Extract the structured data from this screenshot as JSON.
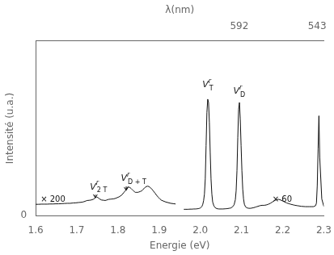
{
  "chart_data": {
    "type": "line",
    "xlabel": "Energie (eV)",
    "ylabel": "Intensité (u.a.)",
    "x2label": "λ(nm)",
    "color": "#111111",
    "grid": false,
    "xlim": [
      1.6,
      2.3
    ],
    "xticks": [
      1.6,
      1.7,
      1.8,
      1.9,
      {
        "value": 2.0,
        "label": "2.0"
      },
      2.1,
      2.2,
      2.3
    ],
    "x2lim": [
      1.6,
      2.3
    ],
    "x2ticks": [
      {
        "value": 2.0946,
        "label": "592"
      },
      {
        "value": 2.2836,
        "label": "543"
      }
    ],
    "ylim": [
      0,
      1.05
    ],
    "yticks": [
      0
    ],
    "series": [
      {
        "x": [
          1.6,
          1.607,
          1.614,
          1.621,
          1.628,
          1.635,
          1.642,
          1.649,
          1.656,
          1.663,
          1.67,
          1.677,
          1.684,
          1.691,
          1.698,
          1.705,
          1.71,
          1.715,
          1.72,
          1.725,
          1.73,
          1.735,
          1.74,
          1.745,
          1.748,
          1.751,
          1.754,
          1.757,
          1.76,
          1.763,
          1.766,
          1.769,
          1.772,
          1.775,
          1.778,
          1.782,
          1.786,
          1.79,
          1.794,
          1.798,
          1.802,
          1.806,
          1.81,
          1.814,
          1.818,
          1.82,
          1.822,
          1.824,
          1.826,
          1.828,
          1.83,
          1.832,
          1.834,
          1.836,
          1.838,
          1.84,
          1.842,
          1.845,
          1.848,
          1.851,
          1.854,
          1.857,
          1.86,
          1.863,
          1.866,
          1.869,
          1.872,
          1.875,
          1.878,
          1.882,
          1.886,
          1.89,
          1.894,
          1.898,
          1.902,
          1.906,
          1.91,
          1.916,
          1.922,
          1.928,
          1.934,
          1.94
        ],
        "values": [
          0.068,
          0.068,
          0.069,
          0.069,
          0.069,
          0.07,
          0.07,
          0.071,
          0.071,
          0.072,
          0.073,
          0.074,
          0.074,
          0.076,
          0.077,
          0.079,
          0.08,
          0.082,
          0.086,
          0.091,
          0.092,
          0.094,
          0.098,
          0.107,
          0.112,
          0.109,
          0.103,
          0.098,
          0.094,
          0.093,
          0.092,
          0.091,
          0.093,
          0.096,
          0.098,
          0.099,
          0.1,
          0.101,
          0.104,
          0.108,
          0.112,
          0.118,
          0.126,
          0.138,
          0.15,
          0.16,
          0.168,
          0.172,
          0.172,
          0.17,
          0.167,
          0.163,
          0.158,
          0.153,
          0.148,
          0.144,
          0.14,
          0.14,
          0.14,
          0.142,
          0.145,
          0.148,
          0.155,
          0.162,
          0.17,
          0.175,
          0.177,
          0.175,
          0.17,
          0.16,
          0.148,
          0.135,
          0.122,
          0.11,
          0.1,
          0.092,
          0.088,
          0.082,
          0.078,
          0.074,
          0.072,
          0.07
        ]
      },
      {
        "x": [
          1.96,
          1.965,
          1.97,
          1.975,
          1.98,
          1.984,
          1.988,
          1.992,
          1.995,
          1.998,
          2.0,
          2.002,
          2.004,
          2.006,
          2.008,
          2.01,
          2.012,
          2.014,
          2.016,
          2.018,
          2.02,
          2.022,
          2.024,
          2.026,
          2.028,
          2.03,
          2.033,
          2.036,
          2.04,
          2.045,
          2.05,
          2.055,
          2.06,
          2.065,
          2.07,
          2.074,
          2.078,
          2.082,
          2.085,
          2.087,
          2.089,
          2.091,
          2.093,
          2.095,
          2.097,
          2.099,
          2.101,
          2.103,
          2.105,
          2.107,
          2.11,
          2.114,
          2.118,
          2.122,
          2.126,
          2.13,
          2.135,
          2.14,
          2.145,
          2.15,
          2.155,
          2.16,
          2.165,
          2.17,
          2.175,
          2.18,
          2.185,
          2.19,
          2.195,
          2.2,
          2.205,
          2.21,
          2.215,
          2.22,
          2.225,
          2.23,
          2.235,
          2.24,
          2.245,
          2.25,
          2.255,
          2.26,
          2.265,
          2.27,
          2.275,
          2.28,
          2.282,
          2.284,
          2.286,
          2.288,
          2.29,
          2.295,
          2.3
        ],
        "values": [
          0.038,
          0.038,
          0.038,
          0.039,
          0.039,
          0.04,
          0.04,
          0.041,
          0.042,
          0.044,
          0.046,
          0.05,
          0.056,
          0.068,
          0.09,
          0.13,
          0.22,
          0.42,
          0.62,
          0.7,
          0.68,
          0.56,
          0.38,
          0.22,
          0.13,
          0.082,
          0.058,
          0.048,
          0.042,
          0.04,
          0.04,
          0.04,
          0.041,
          0.042,
          0.044,
          0.046,
          0.052,
          0.065,
          0.095,
          0.15,
          0.27,
          0.47,
          0.64,
          0.68,
          0.58,
          0.42,
          0.27,
          0.16,
          0.1,
          0.068,
          0.052,
          0.046,
          0.044,
          0.044,
          0.046,
          0.048,
          0.052,
          0.056,
          0.06,
          0.062,
          0.062,
          0.064,
          0.068,
          0.074,
          0.082,
          0.09,
          0.096,
          0.098,
          0.094,
          0.088,
          0.082,
          0.076,
          0.072,
          0.068,
          0.065,
          0.062,
          0.06,
          0.058,
          0.056,
          0.055,
          0.054,
          0.054,
          0.054,
          0.054,
          0.054,
          0.06,
          0.075,
          0.18,
          0.4,
          0.6,
          0.35,
          0.1,
          0.055
        ]
      }
    ],
    "annotations": [
      {
        "text": "× 200",
        "x": 1.612,
        "y": 0.095
      },
      {
        "text": "× 60",
        "x": 2.175,
        "y": 0.095
      },
      {
        "text": "V",
        "superscript": "r",
        "subscript": "2 T",
        "x": 1.745,
        "y": 0.145,
        "arrow_tip": 0.108
      },
      {
        "text": "V",
        "superscript": "r",
        "subscript": "D + T",
        "x": 1.82,
        "y": 0.195,
        "arrow_tip": 0.152
      },
      {
        "text": "V",
        "superscript": "r",
        "subscript": "T",
        "x": 2.018,
        "y": 0.76
      },
      {
        "text": "V",
        "superscript": "r",
        "subscript": "D",
        "x": 2.093,
        "y": 0.72
      }
    ]
  }
}
